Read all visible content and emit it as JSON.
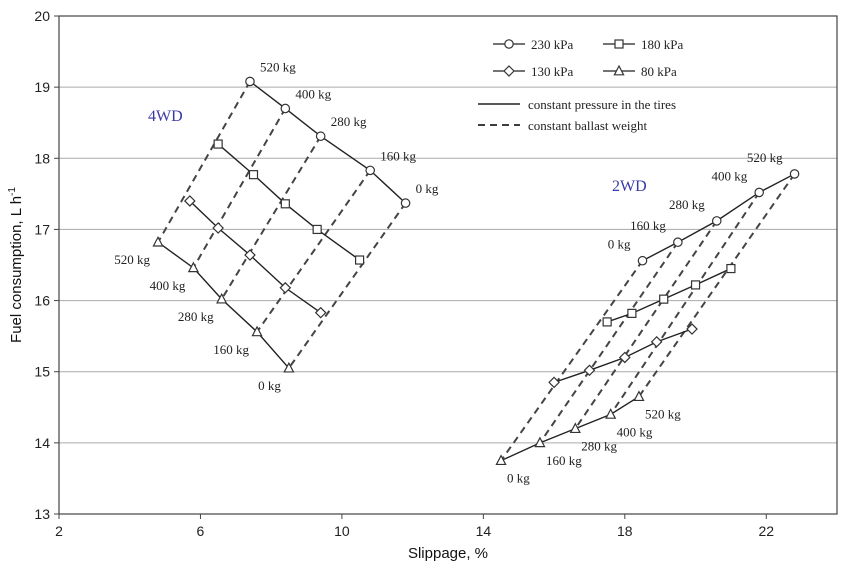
{
  "chart_data": {
    "type": "scatter",
    "xlabel": "Slippage, %",
    "ylabel": "Fuel consumption, L h",
    "ylabel_superscript": "-1",
    "xlim": [
      2,
      24
    ],
    "ylim": [
      13,
      20
    ],
    "x_ticks": [
      "2",
      "6",
      "10",
      "14",
      "18",
      "22"
    ],
    "y_ticks": [
      "13",
      "14",
      "15",
      "16",
      "17",
      "18",
      "19",
      "20"
    ],
    "grid": "horizontal",
    "legend": {
      "placement": "top-right",
      "markers": [
        {
          "label": "230 kPa",
          "marker": "circle"
        },
        {
          "label": "180 kPa",
          "marker": "square"
        },
        {
          "label": "130 kPa",
          "marker": "diamond"
        },
        {
          "label": "80 kPa",
          "marker": "triangle"
        }
      ],
      "lines": [
        {
          "label": "constant pressure in the tires",
          "style": "solid"
        },
        {
          "label": "constant ballast weight",
          "style": "dashed"
        }
      ]
    },
    "ballast_labels": [
      "0 kg",
      "160 kg",
      "280 kg",
      "400 kg",
      "520 kg"
    ],
    "groups": [
      {
        "name": "4WD",
        "series": [
          {
            "name": "230 kPa",
            "marker": "circle",
            "x": [
              11.8,
              10.8,
              9.4,
              8.4,
              7.4
            ],
            "y": [
              17.37,
              17.83,
              18.31,
              18.7,
              19.08
            ]
          },
          {
            "name": "180 kPa",
            "marker": "square",
            "x": [
              10.5,
              9.3,
              8.4,
              7.5,
              6.5
            ],
            "y": [
              16.57,
              17.0,
              17.36,
              17.77,
              18.2
            ]
          },
          {
            "name": "130 kPa",
            "marker": "diamond",
            "x": [
              9.4,
              8.4,
              7.4,
              6.5,
              5.7
            ],
            "y": [
              15.83,
              16.18,
              16.64,
              17.02,
              17.4
            ]
          },
          {
            "name": "80 kPa",
            "marker": "triangle",
            "x": [
              8.5,
              7.6,
              6.6,
              5.8,
              4.8
            ],
            "y": [
              15.05,
              15.56,
              16.02,
              16.46,
              16.82
            ]
          }
        ]
      },
      {
        "name": "2WD",
        "series": [
          {
            "name": "230 kPa",
            "marker": "circle",
            "x": [
              18.5,
              19.5,
              20.6,
              21.8,
              22.8
            ],
            "y": [
              16.56,
              16.82,
              17.12,
              17.52,
              17.78
            ]
          },
          {
            "name": "180 kPa",
            "marker": "square",
            "x": [
              17.5,
              18.2,
              19.1,
              20.0,
              21.0
            ],
            "y": [
              15.7,
              15.82,
              16.02,
              16.22,
              16.45
            ]
          },
          {
            "name": "130 kPa",
            "marker": "diamond",
            "x": [
              16.0,
              17.0,
              18.0,
              18.9,
              19.9
            ],
            "y": [
              14.85,
              15.02,
              15.2,
              15.42,
              15.6
            ]
          },
          {
            "name": "80 kPa",
            "marker": "triangle",
            "x": [
              14.5,
              15.6,
              16.6,
              17.6,
              18.4
            ],
            "y": [
              13.75,
              14.0,
              14.2,
              14.4,
              14.65
            ]
          }
        ]
      }
    ]
  }
}
